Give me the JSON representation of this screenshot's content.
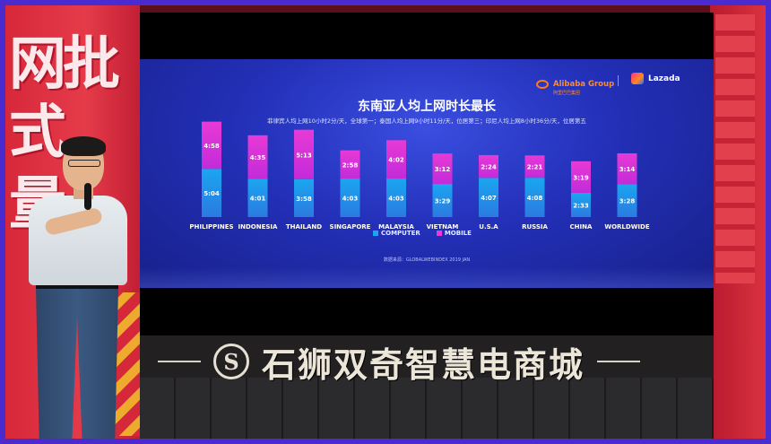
{
  "slide": {
    "title": "东南亚人均上网时长最长",
    "subtitle": "菲律宾人均上网10小时2分/天，全球第一；泰国人均上网9小时11分/天，位居第三；印尼人均上网8小时36分/天，位居第五",
    "source": "数据来源：GLOBALWEBINDEX 2019 JAN",
    "brand_alibaba": "Alibaba Group",
    "brand_alibaba_sub": "阿里巴巴集团",
    "brand_lazada": "Lazada"
  },
  "chart_data": {
    "type": "bar",
    "stacked": true,
    "categories": [
      "PHILIPPINES",
      "INDONESIA",
      "THAILAND",
      "SINGAPORE",
      "MALAYSIA",
      "VIETNAM",
      "U.S.A",
      "RUSSIA",
      "CHINA",
      "WORLDWIDE"
    ],
    "series": [
      {
        "name": "COMPUTER",
        "color": "#1aa6f0",
        "values": [
          5.067,
          4.017,
          3.967,
          4.05,
          4.05,
          3.483,
          4.117,
          4.133,
          2.55,
          3.467
        ],
        "labels": [
          "5:04",
          "4:01",
          "3:58",
          "4:03",
          "4:03",
          "3:29",
          "4:07",
          "4:08",
          "2:33",
          "3:28"
        ]
      },
      {
        "name": "MOBILE",
        "color": "#e83ad6",
        "values": [
          4.967,
          4.583,
          5.217,
          2.967,
          4.033,
          3.2,
          2.4,
          2.35,
          3.317,
          3.233
        ],
        "labels": [
          "4:58",
          "4:35",
          "5:13",
          "2:58",
          "4:02",
          "3:12",
          "2:24",
          "2:21",
          "3:19",
          "3:14"
        ]
      }
    ],
    "legend": [
      "COMPUTER",
      "MOBILE"
    ],
    "legend_position": "bottom"
  },
  "venue_sign": {
    "text": "石狮双奇智慧电商城",
    "logo": "S"
  }
}
